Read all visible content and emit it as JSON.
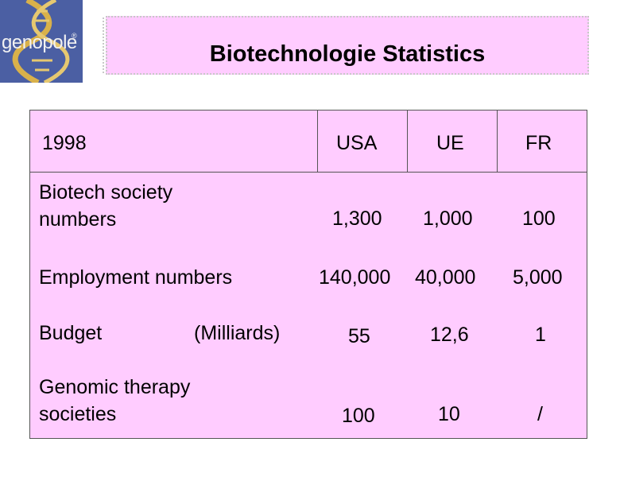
{
  "logo": {
    "text": "genopole",
    "mark": "®"
  },
  "title": "Biotechnologie Statistics",
  "table": {
    "header": {
      "year": "1998",
      "cols": [
        "USA",
        "UE",
        "FR"
      ]
    },
    "rows": [
      {
        "label": "Biotech society numbers",
        "values": [
          "1,300",
          "1,000",
          "100"
        ]
      },
      {
        "label": "Employment numbers",
        "values": [
          "140,000",
          "40,000",
          "5,000"
        ]
      },
      {
        "label": "Budget",
        "sublabel": "(Milliards)",
        "values": [
          "55",
          "12,6",
          "1"
        ]
      },
      {
        "label": "Genomic therapy societies",
        "values": [
          "100",
          "10",
          "/"
        ]
      }
    ]
  }
}
